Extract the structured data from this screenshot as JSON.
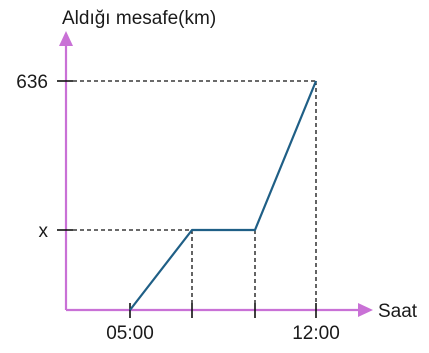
{
  "chart_data": {
    "type": "line",
    "title": "",
    "xlabel": "Saat",
    "ylabel": "Aldığı mesafe(km)",
    "xticks": [
      "05:00",
      "12:00"
    ],
    "yticks": [
      "636",
      "x"
    ],
    "series": [
      {
        "points": [
          {
            "x": "05:00",
            "y": 0
          },
          {
            "x": "07:00",
            "y": "x"
          },
          {
            "x": "09:00",
            "y": "x"
          },
          {
            "x": "12:00",
            "y": 636
          }
        ]
      }
    ],
    "grid": false,
    "colors": {
      "axes": "#c971d6",
      "line": "#1f5f86",
      "guides": "#111111"
    }
  }
}
